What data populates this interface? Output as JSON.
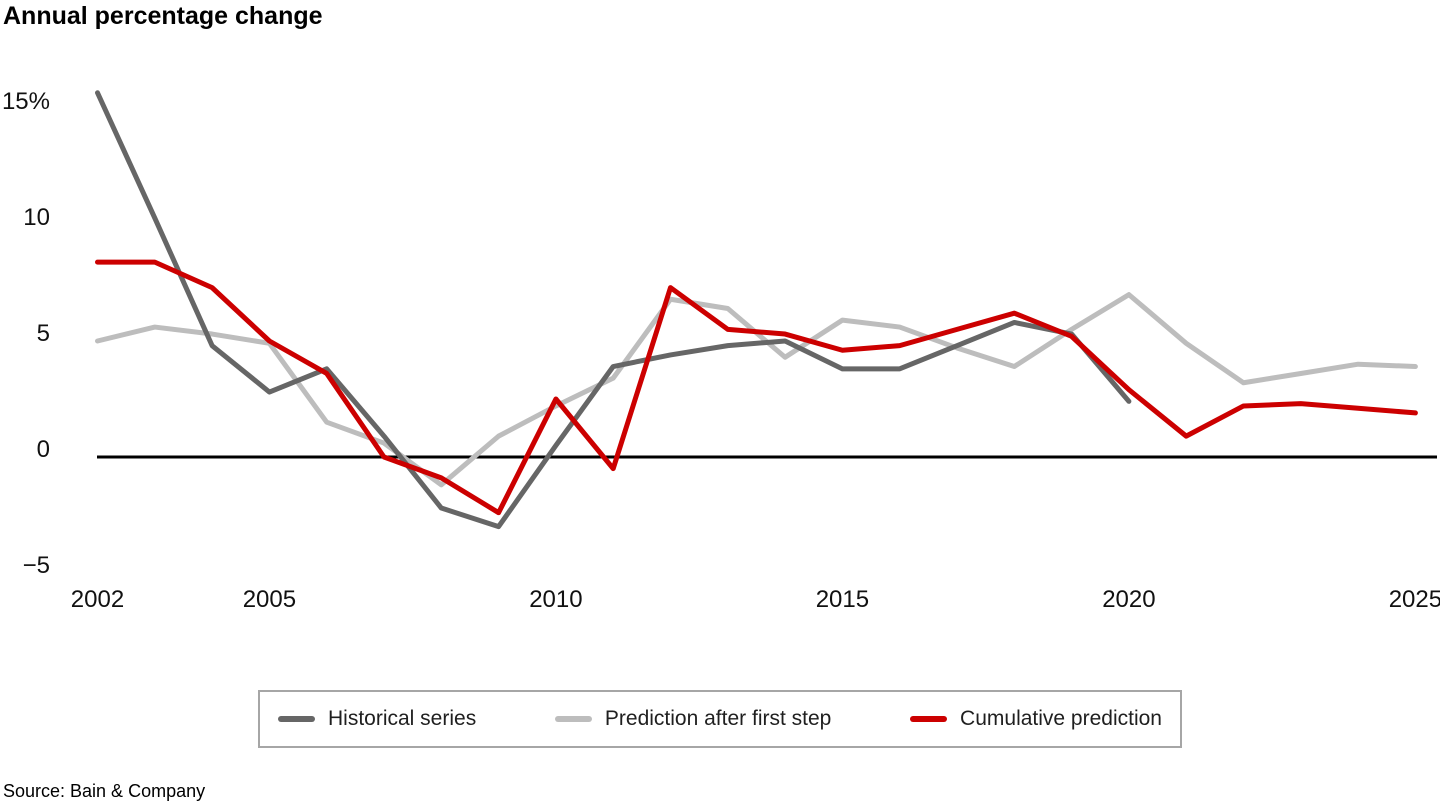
{
  "title": "Annual percentage change",
  "source": "Source: Bain & Company",
  "colors": {
    "historical": "#666666",
    "first_step": "#bdbdbd",
    "cumulative": "#cc0000",
    "axis_line": "#000000",
    "axis_text": "#111111",
    "legend_border": "#a6a6a6"
  },
  "legend": {
    "items": [
      {
        "label": "Historical series",
        "series": "historical"
      },
      {
        "label": "Prediction after first step",
        "series": "first_step"
      },
      {
        "label": "Cumulative prediction",
        "series": "cumulative"
      }
    ]
  },
  "chart_data": {
    "type": "line",
    "title": "Annual percentage change",
    "xlabel": "",
    "ylabel": "Annual percentage change",
    "ylim": [
      -5,
      15
    ],
    "xlim": [
      2002,
      2025
    ],
    "grid": false,
    "legend_position": "bottom",
    "x": [
      2002,
      2003,
      2004,
      2005,
      2006,
      2007,
      2008,
      2009,
      2010,
      2011,
      2012,
      2013,
      2014,
      2015,
      2016,
      2017,
      2018,
      2019,
      2020,
      2021,
      2022,
      2023,
      2024,
      2025
    ],
    "series": [
      {
        "name": "Historical series",
        "key": "historical",
        "values": [
          15.7,
          10.3,
          4.8,
          2.8,
          3.8,
          0.9,
          -2.2,
          -3.0,
          0.5,
          3.9,
          4.4,
          4.8,
          5.0,
          3.8,
          3.8,
          4.8,
          5.8,
          5.3,
          2.4,
          null,
          null,
          null,
          null,
          null
        ]
      },
      {
        "name": "Prediction after first step",
        "key": "first_step",
        "values": [
          5.0,
          5.6,
          5.3,
          4.9,
          1.5,
          0.6,
          -1.2,
          0.9,
          2.2,
          3.4,
          6.8,
          6.4,
          4.3,
          5.9,
          5.6,
          4.7,
          3.9,
          5.5,
          7.0,
          4.9,
          3.2,
          3.6,
          4.0,
          3.9
        ]
      },
      {
        "name": "Cumulative prediction",
        "key": "cumulative",
        "values": [
          8.4,
          8.4,
          7.3,
          5.0,
          3.6,
          0.0,
          -0.9,
          -2.4,
          2.5,
          -0.5,
          7.3,
          5.5,
          5.3,
          4.6,
          4.8,
          5.5,
          6.2,
          5.2,
          2.9,
          0.9,
          2.2,
          2.3,
          2.1,
          1.9
        ]
      }
    ],
    "yticks": [
      {
        "value": 15,
        "label": "15%"
      },
      {
        "value": 10,
        "label": "10"
      },
      {
        "value": 5,
        "label": "5"
      },
      {
        "value": 0,
        "label": "0"
      },
      {
        "value": -5,
        "label": "−5"
      }
    ],
    "xticks": [
      2002,
      2005,
      2010,
      2015,
      2020,
      2025
    ]
  }
}
